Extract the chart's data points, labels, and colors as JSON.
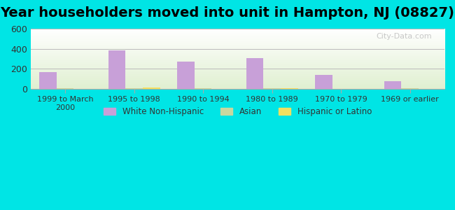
{
  "title": "Year householders moved into unit in Hampton, NJ (08827)",
  "categories": [
    "1999 to March\n2000",
    "1995 to 1998",
    "1990 to 1994",
    "1980 to 1989",
    "1970 to 1979",
    "1969 or earlier"
  ],
  "white_non_hispanic": [
    165,
    385,
    275,
    305,
    140,
    75
  ],
  "asian": [
    5,
    5,
    5,
    5,
    0,
    5
  ],
  "hispanic_or_latino": [
    0,
    15,
    0,
    5,
    0,
    0
  ],
  "white_color": "#c8a0d8",
  "asian_color": "#c8d8a0",
  "hispanic_color": "#f0e060",
  "background_outer": "#00e5e5",
  "ylim": [
    0,
    600
  ],
  "yticks": [
    0,
    200,
    400,
    600
  ],
  "bar_width": 0.25,
  "title_fontsize": 14,
  "watermark": "City-Data.com"
}
